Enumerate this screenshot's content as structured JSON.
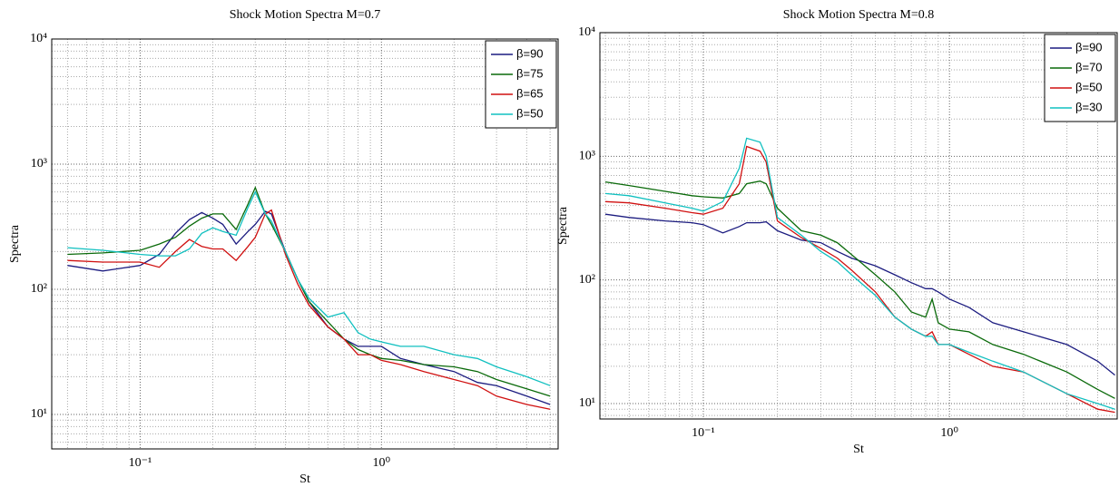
{
  "chart_data": [
    {
      "type": "line",
      "title": "Shock Motion Spectra M=0.7",
      "x_label": "St",
      "y_label": "Spectra",
      "log_x": true,
      "log_y": true,
      "grid": true,
      "legend": "upper right",
      "xlim": [
        0.043,
        5.4
      ],
      "ylim": [
        5.3,
        10000
      ],
      "xticks": [
        {
          "value": 0.1,
          "label": "10⁻¹"
        },
        {
          "value": 1,
          "label": "10⁰"
        }
      ],
      "yticks": [
        {
          "value": 10,
          "label": "10¹"
        },
        {
          "value": 100,
          "label": "10²"
        },
        {
          "value": 1000,
          "label": "10³"
        },
        {
          "value": 10000,
          "label": "10⁴"
        }
      ],
      "xminorticks": [
        0.05,
        0.06,
        0.07,
        0.08,
        0.09,
        0.2,
        0.3,
        0.4,
        0.5,
        0.6,
        0.7,
        0.8,
        0.9,
        2,
        3,
        4,
        5
      ],
      "yminorticks": [
        6,
        7,
        8,
        9,
        20,
        30,
        40,
        50,
        60,
        70,
        80,
        90,
        200,
        300,
        400,
        500,
        600,
        700,
        800,
        900,
        2000,
        3000,
        4000,
        5000,
        6000,
        7000,
        8000,
        9000
      ],
      "x": [
        0.05,
        0.07,
        0.1,
        0.12,
        0.14,
        0.16,
        0.18,
        0.2,
        0.22,
        0.25,
        0.28,
        0.3,
        0.33,
        0.35,
        0.4,
        0.45,
        0.5,
        0.6,
        0.7,
        0.8,
        0.9,
        1.0,
        1.2,
        1.5,
        2,
        2.5,
        3,
        4,
        5
      ],
      "series": [
        {
          "name": "β=90",
          "color": "#1c1c80",
          "values": [
            155,
            140,
            155,
            190,
            280,
            360,
            410,
            370,
            330,
            230,
            290,
            330,
            420,
            400,
            200,
            120,
            80,
            50,
            40,
            35,
            35,
            35,
            28,
            25,
            22,
            18,
            17,
            14,
            12
          ]
        },
        {
          "name": "β=75",
          "color": "#0a6a0a",
          "values": [
            190,
            195,
            205,
            230,
            260,
            320,
            370,
            400,
            400,
            300,
            480,
            650,
            400,
            330,
            200,
            120,
            80,
            55,
            40,
            33,
            30,
            28,
            27,
            25,
            24,
            22,
            19,
            16,
            14
          ]
        },
        {
          "name": "β=65",
          "color": "#d01010",
          "values": [
            170,
            165,
            165,
            150,
            200,
            250,
            220,
            210,
            210,
            170,
            220,
            260,
            400,
            430,
            190,
            110,
            75,
            50,
            40,
            30,
            30,
            27,
            25,
            22,
            19,
            17,
            14,
            12,
            11
          ]
        },
        {
          "name": "β=50",
          "color": "#10c0c0",
          "values": [
            215,
            205,
            190,
            185,
            185,
            210,
            280,
            310,
            290,
            270,
            450,
            600,
            400,
            350,
            200,
            120,
            85,
            60,
            65,
            45,
            40,
            38,
            35,
            35,
            30,
            28,
            24,
            20,
            17
          ]
        }
      ]
    },
    {
      "type": "line",
      "title": "Shock Motion Spectra M=0.8",
      "x_label": "St",
      "y_label": "Spectra",
      "log_x": true,
      "log_y": true,
      "grid": true,
      "legend": "upper right",
      "xlim": [
        0.038,
        4.8
      ],
      "ylim": [
        7.5,
        10000
      ],
      "xticks": [
        {
          "value": 0.1,
          "label": "10⁻¹"
        },
        {
          "value": 1,
          "label": "10⁰"
        }
      ],
      "yticks": [
        {
          "value": 10,
          "label": "10¹"
        },
        {
          "value": 100,
          "label": "10²"
        },
        {
          "value": 1000,
          "label": "10³"
        },
        {
          "value": 10000,
          "label": "10⁴"
        }
      ],
      "xminorticks": [
        0.04,
        0.05,
        0.06,
        0.07,
        0.08,
        0.09,
        0.2,
        0.3,
        0.4,
        0.5,
        0.6,
        0.7,
        0.8,
        0.9,
        2,
        3,
        4
      ],
      "yminorticks": [
        8,
        9,
        20,
        30,
        40,
        50,
        60,
        70,
        80,
        90,
        200,
        300,
        400,
        500,
        600,
        700,
        800,
        900,
        2000,
        3000,
        4000,
        5000,
        6000,
        7000,
        8000,
        9000
      ],
      "x": [
        0.04,
        0.05,
        0.07,
        0.09,
        0.1,
        0.12,
        0.14,
        0.15,
        0.17,
        0.18,
        0.2,
        0.25,
        0.3,
        0.35,
        0.4,
        0.5,
        0.6,
        0.7,
        0.8,
        0.85,
        0.9,
        1.0,
        1.2,
        1.5,
        2,
        3,
        4,
        4.7
      ],
      "series": [
        {
          "name": "β=90",
          "color": "#1c1c80",
          "values": [
            340,
            320,
            300,
            290,
            280,
            240,
            270,
            290,
            290,
            295,
            250,
            210,
            200,
            170,
            150,
            130,
            110,
            95,
            85,
            85,
            80,
            70,
            60,
            45,
            38,
            30,
            22,
            17
          ]
        },
        {
          "name": "β=70",
          "color": "#0a6a0a",
          "values": [
            620,
            580,
            520,
            480,
            470,
            460,
            500,
            600,
            630,
            600,
            380,
            250,
            230,
            200,
            160,
            110,
            80,
            55,
            50,
            70,
            45,
            40,
            38,
            30,
            25,
            18,
            13,
            11
          ]
        },
        {
          "name": "β=50",
          "color": "#d01010",
          "values": [
            430,
            420,
            380,
            350,
            340,
            380,
            600,
            1200,
            1100,
            900,
            300,
            220,
            180,
            150,
            120,
            80,
            50,
            40,
            35,
            38,
            30,
            30,
            25,
            20,
            18,
            12,
            9,
            8.5
          ]
        },
        {
          "name": "β=30",
          "color": "#10c0c0",
          "values": [
            500,
            480,
            420,
            380,
            360,
            430,
            800,
            1400,
            1300,
            1000,
            320,
            230,
            170,
            140,
            110,
            75,
            50,
            40,
            35,
            35,
            30,
            30,
            26,
            22,
            18,
            12,
            10,
            9
          ]
        }
      ]
    }
  ]
}
